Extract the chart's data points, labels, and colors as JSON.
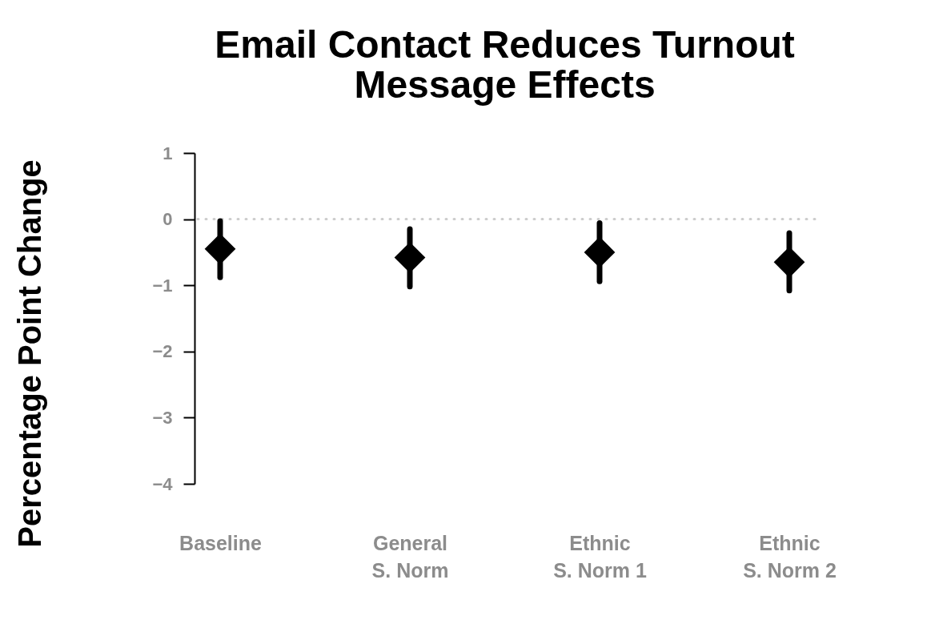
{
  "chart_data": {
    "type": "scatter",
    "title": "Email Contact Reduces Turnout",
    "subtitle": "Message Effects",
    "ylabel": "Percentage Point Change",
    "categories": [
      "Baseline",
      "General\nS. Norm",
      "Ethnic\nS. Norm 1",
      "Ethnic\nS. Norm 2"
    ],
    "series": [
      {
        "color": "#000000",
        "values": [
          -0.45,
          -0.58,
          -0.5,
          -0.65
        ],
        "errors": [
          [
            -0.88,
            -0.03
          ],
          [
            -1.02,
            -0.15
          ],
          [
            -0.94,
            -0.06
          ],
          [
            -1.08,
            -0.21
          ]
        ]
      }
    ],
    "marker": "diamond",
    "ylim": [
      -4,
      1
    ],
    "yticks": [
      {
        "value": -4,
        "label": "−4"
      },
      {
        "value": -3,
        "label": "−3"
      },
      {
        "value": -2,
        "label": "−2"
      },
      {
        "value": -1,
        "label": "−1"
      },
      0,
      1
    ],
    "ref_lines": [
      {
        "axis": "y",
        "value": 0,
        "color": "#cccccc",
        "line_style": "dotted"
      }
    ],
    "grid": false
  }
}
